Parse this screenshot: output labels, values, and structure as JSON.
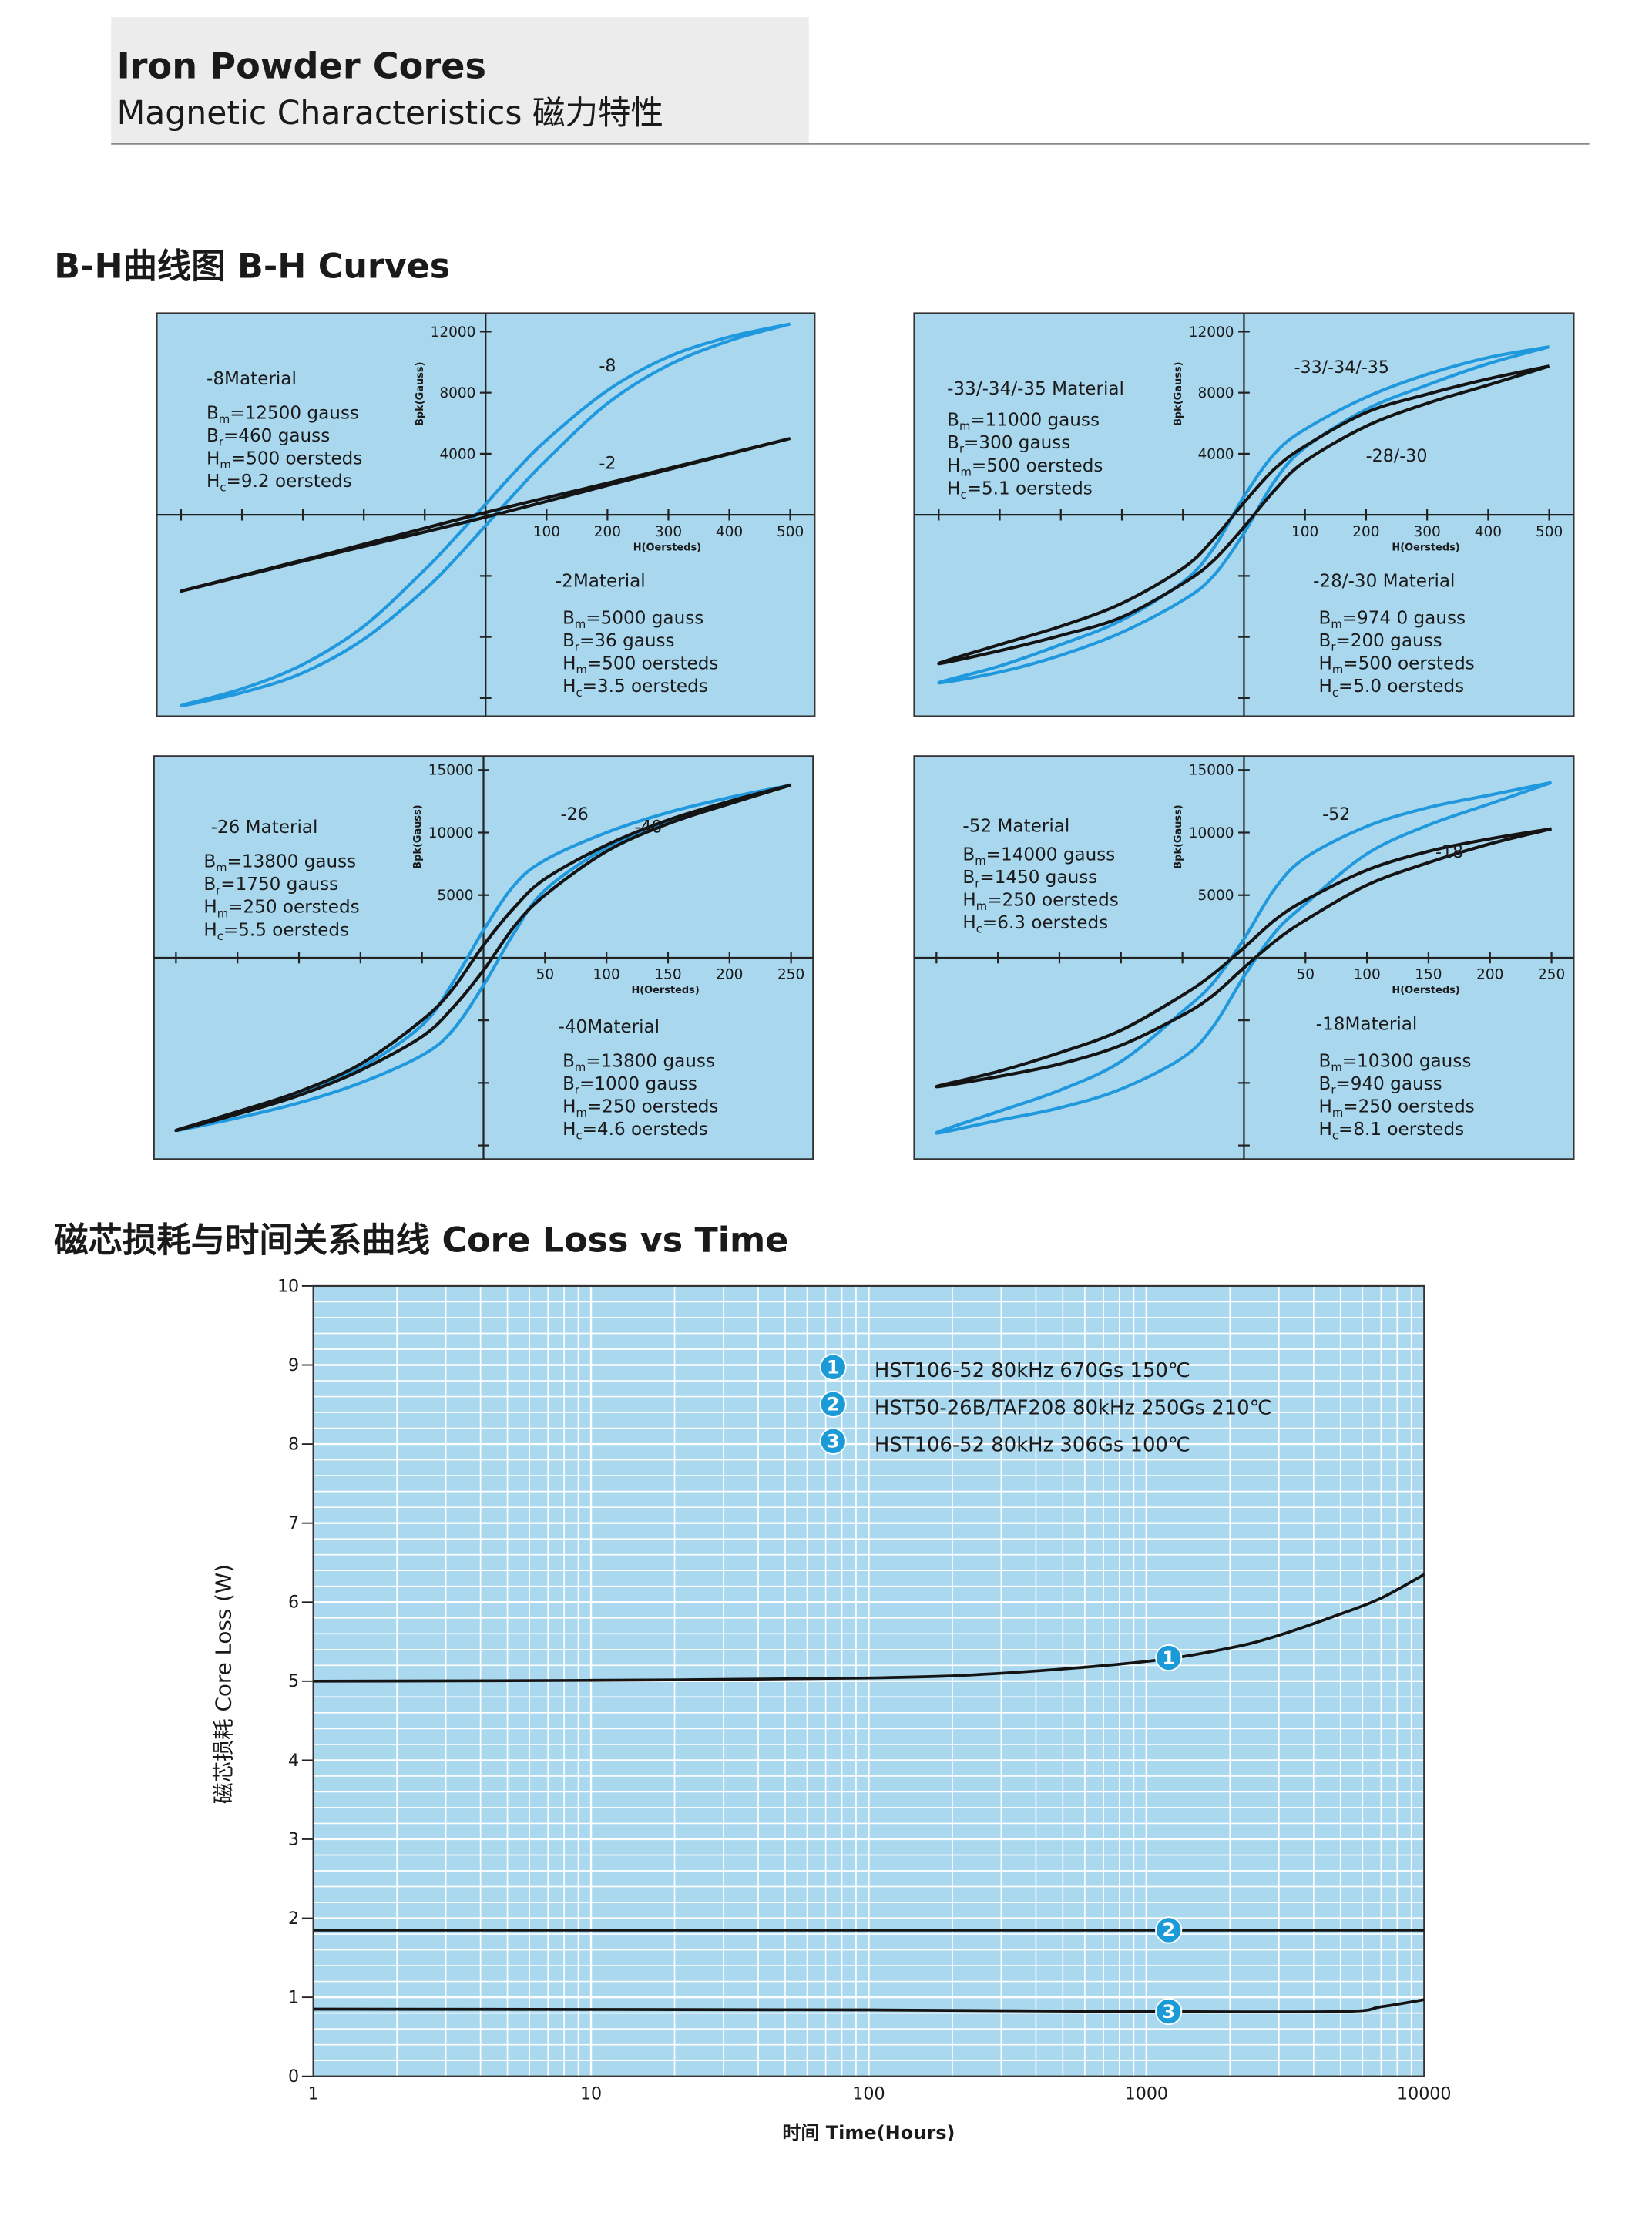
{
  "header": {
    "title": "Iron Powder Cores",
    "subtitle": "Magnetic Characteristics 磁力特性"
  },
  "sections": [
    "B-H曲线图 B-H Curves",
    "磁芯损耗与时间关系曲线 Core Loss vs Time"
  ],
  "chart_data": [
    {
      "type": "line",
      "xlabel": "H(Oersteds)",
      "ylabel": "Bpk(Gauss)",
      "xlim": [
        -540,
        540
      ],
      "ylim": [
        -13200,
        13200
      ],
      "xticks": [
        {
          "value": -500,
          "label": null
        },
        {
          "value": -400,
          "label": null
        },
        {
          "value": -300,
          "label": null
        },
        {
          "value": -200,
          "label": null
        },
        {
          "value": -100,
          "label": null
        },
        100,
        200,
        300,
        400,
        500
      ],
      "yticks": [
        {
          "value": -12000,
          "label": null
        },
        {
          "value": -8000,
          "label": null
        },
        {
          "value": -4000,
          "label": null
        },
        4000,
        8000,
        12000
      ],
      "series": [
        {
          "name": "-8",
          "color": "#1f98de",
          "material": "-8Material",
          "params": [
            {
              "symbol": "B",
              "sub": "m",
              "text": "=12500 gauss"
            },
            {
              "symbol": "B",
              "sub": "r",
              "text": "=460 gauss"
            },
            {
              "symbol": "H",
              "sub": "m",
              "text": "=500 oersteds"
            },
            {
              "symbol": "H",
              "sub": "c",
              "text": "=9.2 oersteds"
            }
          ],
          "x": [
            500,
            400,
            300,
            200,
            100,
            50,
            0,
            -50,
            -100,
            -200,
            -300,
            -400,
            -500,
            -400,
            -300,
            -200,
            -100,
            -50,
            0,
            50,
            100,
            200,
            300,
            400,
            500
          ],
          "y": [
            12500,
            11650,
            10350,
            8150,
            4900,
            2900,
            700,
            -1500,
            -3600,
            -7300,
            -9800,
            -11400,
            -12500,
            -11650,
            -10350,
            -8150,
            -4900,
            -2900,
            -700,
            1500,
            3600,
            7300,
            9800,
            11400,
            12500
          ]
        },
        {
          "name": "-2",
          "color": "#141414",
          "material": "-2Material",
          "params": [
            {
              "symbol": "B",
              "sub": "m",
              "text": "=5000 gauss"
            },
            {
              "symbol": "B",
              "sub": "r",
              "text": "=36 gauss"
            },
            {
              "symbol": "H",
              "sub": "m",
              "text": "=500 oersteds"
            },
            {
              "symbol": "H",
              "sub": "c",
              "text": "=3.5 oersteds"
            }
          ],
          "x": [
            500,
            250,
            0,
            -250,
            -500,
            -250,
            0,
            250,
            500
          ],
          "y": [
            5000,
            2550,
            150,
            -2450,
            -5000,
            -2550,
            -150,
            2450,
            5000
          ]
        }
      ]
    },
    {
      "type": "line",
      "xlabel": "H(Oersteds)",
      "ylabel": "Bpk(Gauss)",
      "xlim": [
        -540,
        540
      ],
      "ylim": [
        -13200,
        13200
      ],
      "xticks": [
        {
          "value": -500,
          "label": null
        },
        {
          "value": -400,
          "label": null
        },
        {
          "value": -300,
          "label": null
        },
        {
          "value": -200,
          "label": null
        },
        {
          "value": -100,
          "label": null
        },
        100,
        200,
        300,
        400,
        500
      ],
      "yticks": [
        {
          "value": -12000,
          "label": null
        },
        {
          "value": -8000,
          "label": null
        },
        {
          "value": -4000,
          "label": null
        },
        4000,
        8000,
        12000
      ],
      "series": [
        {
          "name": "-33/-34/-35",
          "color": "#1f98de",
          "material": "-33/-34/-35 Material",
          "params": [
            {
              "symbol": "B",
              "sub": "m",
              "text": "=11000 gauss"
            },
            {
              "symbol": "B",
              "sub": "r",
              "text": "=300 gauss"
            },
            {
              "symbol": "H",
              "sub": "m",
              "text": "=500 oersteds"
            },
            {
              "symbol": "H",
              "sub": "c",
              "text": "=5.1 oersteds"
            }
          ],
          "x": [
            500,
            400,
            300,
            200,
            100,
            50,
            0,
            -50,
            -100,
            -200,
            -300,
            -400,
            -500,
            -400,
            -300,
            -200,
            -100,
            -50,
            0,
            50,
            100,
            200,
            300,
            400,
            500
          ],
          "y": [
            11000,
            10300,
            9200,
            7700,
            5600,
            4000,
            1200,
            -2200,
            -4400,
            -6900,
            -8500,
            -9900,
            -11000,
            -10300,
            -9200,
            -7700,
            -5600,
            -4000,
            -1200,
            2200,
            4400,
            6900,
            8500,
            9900,
            11000
          ]
        },
        {
          "name": "-28/-30",
          "color": "#141414",
          "material": "-28/-30 Material",
          "params": [
            {
              "symbol": "B",
              "sub": "m",
              "text": "=974 0 gauss"
            },
            {
              "symbol": "B",
              "sub": "r",
              "text": "=200 gauss"
            },
            {
              "symbol": "H",
              "sub": "m",
              "text": "=500 oersteds"
            },
            {
              "symbol": "H",
              "sub": "c",
              "text": "=5.0 oersteds"
            }
          ],
          "x": [
            500,
            400,
            300,
            200,
            100,
            50,
            0,
            -50,
            -100,
            -200,
            -300,
            -400,
            -500,
            -400,
            -300,
            -200,
            -100,
            -50,
            0,
            50,
            100,
            200,
            300,
            400,
            500
          ],
          "y": [
            9740,
            8900,
            7900,
            6700,
            4500,
            3000,
            800,
            -1600,
            -3500,
            -5800,
            -7300,
            -8500,
            -9740,
            -8900,
            -7900,
            -6700,
            -4500,
            -3000,
            -800,
            1600,
            3500,
            5800,
            7300,
            8500,
            9740
          ]
        }
      ]
    },
    {
      "type": "line",
      "xlabel": "H(Oersteds)",
      "ylabel": "Bpk(Gauss)",
      "xlim": [
        -268,
        268
      ],
      "ylim": [
        -16100,
        16100
      ],
      "xticks": [
        {
          "value": -250,
          "label": null
        },
        {
          "value": -200,
          "label": null
        },
        {
          "value": -150,
          "label": null
        },
        {
          "value": -100,
          "label": null
        },
        {
          "value": -50,
          "label": null
        },
        50,
        100,
        150,
        200,
        250
      ],
      "yticks": [
        {
          "value": -15000,
          "label": null
        },
        {
          "value": -10000,
          "label": null
        },
        {
          "value": -5000,
          "label": null
        },
        5000,
        10000,
        15000
      ],
      "series": [
        {
          "name": "-26",
          "color": "#1f98de",
          "material": "-26 Material",
          "params": [
            {
              "symbol": "B",
              "sub": "m",
              "text": "=13800 gauss"
            },
            {
              "symbol": "B",
              "sub": "r",
              "text": "=1750 gauss"
            },
            {
              "symbol": "H",
              "sub": "m",
              "text": "=250 oersteds"
            },
            {
              "symbol": "H",
              "sub": "c",
              "text": "=5.5 oersteds"
            }
          ],
          "x": [
            250,
            200,
            150,
            100,
            50,
            25,
            0,
            -25,
            -50,
            -100,
            -150,
            -200,
            -250,
            -200,
            -150,
            -100,
            -50,
            -25,
            0,
            25,
            50,
            100,
            150,
            200,
            250
          ],
          "y": [
            13800,
            12800,
            11600,
            10000,
            7800,
            5800,
            2200,
            -2000,
            -5400,
            -8800,
            -10900,
            -12400,
            -13800,
            -12800,
            -11600,
            -10000,
            -7800,
            -5800,
            -2200,
            2000,
            5400,
            8800,
            10900,
            12400,
            13800
          ]
        },
        {
          "name": "-40",
          "color": "#141414",
          "material": "-40Material",
          "params": [
            {
              "symbol": "B",
              "sub": "m",
              "text": "=13800 gauss"
            },
            {
              "symbol": "B",
              "sub": "r",
              "text": "=1000 gauss"
            },
            {
              "symbol": "H",
              "sub": "m",
              "text": "=250 oersteds"
            },
            {
              "symbol": "H",
              "sub": "c",
              "text": "=4.6 oersteds"
            }
          ],
          "x": [
            250,
            200,
            150,
            100,
            50,
            25,
            0,
            -25,
            -50,
            -100,
            -150,
            -200,
            -250,
            -200,
            -150,
            -100,
            -50,
            -25,
            0,
            25,
            50,
            100,
            150,
            200,
            250
          ],
          "y": [
            13800,
            12500,
            11000,
            9000,
            6300,
            4000,
            1000,
            -2500,
            -5000,
            -8500,
            -10700,
            -12300,
            -13800,
            -12500,
            -11000,
            -9000,
            -6300,
            -4000,
            -1000,
            2500,
            5000,
            8500,
            10700,
            12300,
            13800
          ]
        }
      ]
    },
    {
      "type": "line",
      "xlabel": "H(Oersteds)",
      "ylabel": "Bpk(Gauss)",
      "xlim": [
        -268,
        268
      ],
      "ylim": [
        -16100,
        16100
      ],
      "xticks": [
        {
          "value": -250,
          "label": null
        },
        {
          "value": -200,
          "label": null
        },
        {
          "value": -150,
          "label": null
        },
        {
          "value": -100,
          "label": null
        },
        {
          "value": -50,
          "label": null
        },
        50,
        100,
        150,
        200,
        250
      ],
      "yticks": [
        {
          "value": -15000,
          "label": null
        },
        {
          "value": -10000,
          "label": null
        },
        {
          "value": -5000,
          "label": null
        },
        5000,
        10000,
        15000
      ],
      "series": [
        {
          "name": "-52",
          "color": "#1f98de",
          "material": "-52 Material",
          "params": [
            {
              "symbol": "B",
              "sub": "m",
              "text": "=14000 gauss"
            },
            {
              "symbol": "B",
              "sub": "r",
              "text": "=1450 gauss"
            },
            {
              "symbol": "H",
              "sub": "m",
              "text": "=250 oersteds"
            },
            {
              "symbol": "H",
              "sub": "c",
              "text": "=6.3 oersteds"
            }
          ],
          "x": [
            250,
            200,
            150,
            100,
            50,
            25,
            0,
            -25,
            -50,
            -100,
            -150,
            -200,
            -250,
            -200,
            -150,
            -100,
            -50,
            -25,
            0,
            25,
            50,
            100,
            150,
            200,
            250
          ],
          "y": [
            14000,
            13000,
            12000,
            10500,
            8000,
            5500,
            1500,
            -2000,
            -4300,
            -8300,
            -10600,
            -12300,
            -14000,
            -13000,
            -12000,
            -10500,
            -8000,
            -5500,
            -1500,
            2000,
            4300,
            8300,
            10600,
            12300,
            14000
          ]
        },
        {
          "name": "-18",
          "color": "#141414",
          "material": "-18Material",
          "params": [
            {
              "symbol": "B",
              "sub": "m",
              "text": "=10300 gauss"
            },
            {
              "symbol": "B",
              "sub": "r",
              "text": "=940 gauss"
            },
            {
              "symbol": "H",
              "sub": "m",
              "text": "=250 oersteds"
            },
            {
              "symbol": "H",
              "sub": "c",
              "text": "=8.1 oersteds"
            }
          ],
          "x": [
            250,
            200,
            150,
            100,
            50,
            25,
            0,
            -25,
            -50,
            -100,
            -150,
            -200,
            -250,
            -200,
            -150,
            -100,
            -50,
            -25,
            0,
            25,
            50,
            100,
            150,
            200,
            250
          ],
          "y": [
            10300,
            9500,
            8500,
            7000,
            4600,
            3000,
            800,
            -1300,
            -3000,
            -5800,
            -7600,
            -9100,
            -10300,
            -9500,
            -8500,
            -7000,
            -4600,
            -3000,
            -800,
            1300,
            3000,
            5800,
            7600,
            9100,
            10300
          ]
        }
      ]
    },
    {
      "type": "line",
      "xscale": "log",
      "xlabel": "时间 Time(Hours)",
      "ylabel": "磁芯损耗 Core Loss (W)",
      "xlim": [
        1,
        10000
      ],
      "ylim": [
        0,
        10
      ],
      "xticks": [
        1,
        10,
        100,
        1000,
        10000
      ],
      "yticks": [
        0,
        1,
        2,
        3,
        4,
        5,
        6,
        7,
        8,
        9,
        10
      ],
      "grid": true,
      "plot_color": "#a9d8ef",
      "grid_color": "#ffffff",
      "legend": "upper-center",
      "marker_color": "#1a9ad6",
      "xminor": [
        2,
        3,
        4,
        5,
        6,
        7,
        8,
        9,
        20,
        30,
        40,
        50,
        60,
        70,
        80,
        90,
        200,
        300,
        400,
        500,
        600,
        700,
        800,
        900,
        2000,
        3000,
        4000,
        5000,
        6000,
        7000,
        8000,
        9000
      ],
      "yminor": [
        0.2,
        0.4,
        0.6,
        0.8,
        1.2,
        1.4,
        1.6,
        1.8,
        2.2,
        2.4,
        2.6,
        2.8,
        3.2,
        3.4,
        3.6,
        3.8,
        4.2,
        4.4,
        4.6,
        4.8,
        5.2,
        5.4,
        5.6,
        5.8,
        6.2,
        6.4,
        6.6,
        6.8,
        7.2,
        7.4,
        7.6,
        7.8,
        8.2,
        8.4,
        8.6,
        8.8,
        9.2,
        9.4,
        9.6,
        9.8
      ],
      "series": [
        {
          "id": "1",
          "name": "HST106-52 80kHz 670Gs 150℃",
          "color": "#141414",
          "x": [
            1,
            10,
            100,
            300,
            1000,
            2000,
            3000,
            5000,
            7000,
            10000
          ],
          "y": [
            5.0,
            5.01,
            5.04,
            5.1,
            5.25,
            5.42,
            5.58,
            5.85,
            6.05,
            6.35
          ]
        },
        {
          "id": "2",
          "name": "HST50-26B/TAF208 80kHz 250Gs 210℃",
          "color": "#141414",
          "x": [
            1,
            10000
          ],
          "y": [
            1.85,
            1.85
          ]
        },
        {
          "id": "3",
          "name": "HST106-52 80kHz 306Gs 100℃",
          "color": "#141414",
          "x": [
            1,
            100,
            1000,
            5000,
            7000,
            10000
          ],
          "y": [
            0.85,
            0.84,
            0.82,
            0.82,
            0.88,
            0.97
          ]
        }
      ]
    }
  ]
}
